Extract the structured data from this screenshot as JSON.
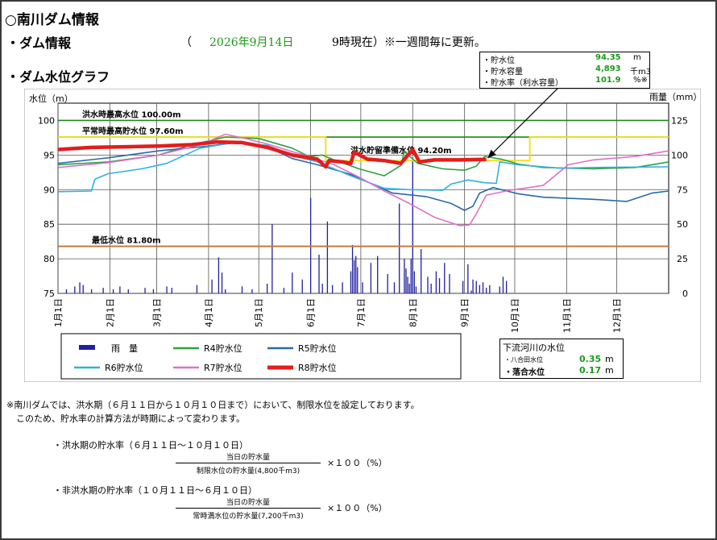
{
  "header": {
    "title": "○南川ダム情報",
    "dam_info_label": "・ダム情報",
    "date_open": "（",
    "date": "2026年9月14日",
    "time_note": "9時現在）※一週間毎に更新。",
    "graph_label": "・ダム水位グラフ"
  },
  "current_box": {
    "rows": [
      {
        "label": "・貯水位",
        "value": "94.35",
        "unit": "m"
      },
      {
        "label": "・貯水容量",
        "value": "4,893",
        "unit": "千m3"
      },
      {
        "label": "・貯水率（利水容量）",
        "value": "101.9",
        "unit": "%※"
      }
    ]
  },
  "downstream_box": {
    "title": "下流河川の水位",
    "rows": [
      {
        "label": "・八合田水位",
        "value": "0.35",
        "unit": "m"
      },
      {
        "label": "・落合水位",
        "value": "0.17",
        "unit": "m"
      }
    ]
  },
  "notes": {
    "line1": "※南川ダムでは、洪水期（６月１１日から１０月１０日まで）において、制限水位を設定しております。",
    "line2": "このため、貯水率の計算方法が時期によって変わります。",
    "flood_title": "・洪水期の貯水率（６月１１日～１０月１０日）",
    "flood_num": "当日の貯水量",
    "flood_den": "制限水位の貯水量(4,800千m3)",
    "flood_mult": "×１００（%）",
    "nonflood_title": "・非洪水期の貯水率（１０月１１日～６月１０日）",
    "nonflood_num": "当日の貯水量",
    "nonflood_den": "常時満水位の貯水量(7,200千m3)",
    "nonflood_mult": "×１００（%）"
  },
  "chart_data": {
    "type": "line",
    "ylabel": "水位（m）",
    "y2label": "雨量（mm）",
    "ylim": [
      75,
      102.5
    ],
    "yticks": [
      75,
      80,
      85,
      90,
      95,
      100
    ],
    "y2lim": [
      0,
      137.5
    ],
    "y2ticks": [
      0,
      25,
      50,
      75,
      100,
      125
    ],
    "xlim": [
      0,
      365
    ],
    "month_ticks": [
      {
        "label": "1月1日",
        "day": 0
      },
      {
        "label": "2月1日",
        "day": 31
      },
      {
        "label": "3月1日",
        "day": 59
      },
      {
        "label": "4月1日",
        "day": 90
      },
      {
        "label": "5月1日",
        "day": 120
      },
      {
        "label": "6月1日",
        "day": 151
      },
      {
        "label": "7月1日",
        "day": 181
      },
      {
        "label": "8月1日",
        "day": 212
      },
      {
        "label": "9月1日",
        "day": 243
      },
      {
        "label": "10月1日",
        "day": 273
      },
      {
        "label": "11月1日",
        "day": 304
      },
      {
        "label": "12月1日",
        "day": 334
      }
    ],
    "reference_lines": [
      {
        "label": "洪水時最高水位 100.00m",
        "value": 100.0,
        "color": "#1a8a1a"
      },
      {
        "label": "平常時最高貯水位 97.60m",
        "value": 97.6,
        "color": "#1a8a1a"
      },
      {
        "label": "洪水貯留準備水位 94.20m",
        "value": 94.2,
        "color": "#1a8a1a"
      },
      {
        "label": "最低水位 81.80m",
        "value": 81.8,
        "color": "#c8783c"
      }
    ],
    "limit_line": {
      "color": "#f0e020",
      "points": [
        [
          0,
          97.6
        ],
        [
          160,
          97.6
        ],
        [
          160,
          94.2
        ],
        [
          282,
          94.2
        ],
        [
          282,
          97.6
        ],
        [
          365,
          97.6
        ]
      ]
    },
    "series": [
      {
        "name": "R4貯水位",
        "color": "#30a040",
        "width": 1.6,
        "points": [
          [
            0,
            93.6
          ],
          [
            30,
            94.0
          ],
          [
            60,
            95.0
          ],
          [
            80,
            96.5
          ],
          [
            100,
            97.6
          ],
          [
            120,
            97.4
          ],
          [
            140,
            96.0
          ],
          [
            150,
            94.8
          ],
          [
            158,
            95.0
          ],
          [
            165,
            94.3
          ],
          [
            180,
            93.0
          ],
          [
            195,
            92.0
          ],
          [
            205,
            93.5
          ],
          [
            207,
            95.5
          ],
          [
            215,
            93.8
          ],
          [
            230,
            93.0
          ],
          [
            243,
            92.8
          ],
          [
            250,
            93.4
          ],
          [
            255,
            94.8
          ],
          [
            265,
            94.4
          ],
          [
            275,
            93.7
          ],
          [
            290,
            93.2
          ],
          [
            320,
            93.0
          ],
          [
            345,
            93.2
          ],
          [
            355,
            93.6
          ],
          [
            365,
            94.0
          ]
        ]
      },
      {
        "name": "R5貯水位",
        "color": "#2a6aa8",
        "width": 1.6,
        "points": [
          [
            0,
            93.8
          ],
          [
            30,
            94.6
          ],
          [
            60,
            95.6
          ],
          [
            90,
            96.3
          ],
          [
            110,
            96.9
          ],
          [
            125,
            96.2
          ],
          [
            140,
            94.5
          ],
          [
            155,
            93.6
          ],
          [
            175,
            92.2
          ],
          [
            200,
            89.5
          ],
          [
            220,
            89.0
          ],
          [
            235,
            88.0
          ],
          [
            243,
            87.0
          ],
          [
            248,
            87.6
          ],
          [
            252,
            89.5
          ],
          [
            260,
            90.3
          ],
          [
            275,
            89.4
          ],
          [
            290,
            88.9
          ],
          [
            320,
            88.6
          ],
          [
            340,
            88.3
          ],
          [
            355,
            89.5
          ],
          [
            365,
            89.8
          ]
        ]
      },
      {
        "name": "R6貯水位",
        "color": "#30b0e0",
        "width": 1.6,
        "points": [
          [
            0,
            89.7
          ],
          [
            20,
            89.8
          ],
          [
            22,
            91.5
          ],
          [
            30,
            92.3
          ],
          [
            50,
            93.0
          ],
          [
            65,
            93.8
          ],
          [
            85,
            96.0
          ],
          [
            105,
            96.8
          ],
          [
            125,
            96.4
          ],
          [
            140,
            95.0
          ],
          [
            155,
            94.0
          ],
          [
            175,
            92.0
          ],
          [
            195,
            90.2
          ],
          [
            210,
            90.0
          ],
          [
            230,
            89.9
          ],
          [
            235,
            90.8
          ],
          [
            245,
            91.4
          ],
          [
            255,
            91.0
          ],
          [
            262,
            90.9
          ],
          [
            264,
            94.0
          ],
          [
            275,
            93.6
          ],
          [
            300,
            93.1
          ],
          [
            320,
            93.2
          ],
          [
            365,
            93.3
          ]
        ]
      },
      {
        "name": "R7貯水位",
        "color": "#e070c8",
        "width": 1.6,
        "points": [
          [
            0,
            93.2
          ],
          [
            30,
            93.9
          ],
          [
            60,
            95.0
          ],
          [
            85,
            96.5
          ],
          [
            100,
            98.0
          ],
          [
            112,
            97.4
          ],
          [
            125,
            96.6
          ],
          [
            140,
            95.5
          ],
          [
            150,
            94.8
          ],
          [
            165,
            93.6
          ],
          [
            180,
            91.8
          ],
          [
            195,
            89.8
          ],
          [
            210,
            88.0
          ],
          [
            225,
            86.0
          ],
          [
            240,
            84.8
          ],
          [
            246,
            84.9
          ],
          [
            250,
            86.5
          ],
          [
            256,
            89.2
          ],
          [
            270,
            89.9
          ],
          [
            290,
            90.6
          ],
          [
            305,
            93.6
          ],
          [
            320,
            94.3
          ],
          [
            345,
            94.8
          ],
          [
            365,
            95.6
          ]
        ]
      },
      {
        "name": "R8貯水位",
        "color": "#e41c1c",
        "width": 4.5,
        "points": [
          [
            0,
            95.8
          ],
          [
            20,
            96.1
          ],
          [
            40,
            96.2
          ],
          [
            60,
            96.3
          ],
          [
            80,
            96.5
          ],
          [
            95,
            96.9
          ],
          [
            110,
            96.8
          ],
          [
            125,
            96.1
          ],
          [
            140,
            95.0
          ],
          [
            155,
            94.4
          ],
          [
            160,
            93.3
          ],
          [
            162,
            94.2
          ],
          [
            170,
            94.0
          ],
          [
            175,
            93.8
          ],
          [
            177,
            95.4
          ],
          [
            185,
            94.4
          ],
          [
            195,
            94.2
          ],
          [
            205,
            93.8
          ],
          [
            212,
            95.8
          ],
          [
            216,
            94.0
          ],
          [
            225,
            94.3
          ],
          [
            240,
            94.3
          ],
          [
            252,
            94.35
          ],
          [
            256,
            94.35
          ]
        ]
      }
    ],
    "rain": {
      "name": "雨　量",
      "color": "#2020a0",
      "bars": [
        [
          5,
          3
        ],
        [
          10,
          5
        ],
        [
          13,
          8
        ],
        [
          15,
          6
        ],
        [
          20,
          3
        ],
        [
          27,
          4
        ],
        [
          33,
          3
        ],
        [
          37,
          5
        ],
        [
          42,
          3
        ],
        [
          52,
          4
        ],
        [
          57,
          3
        ],
        [
          65,
          5
        ],
        [
          68,
          4
        ],
        [
          83,
          6
        ],
        [
          92,
          10
        ],
        [
          96,
          26
        ],
        [
          98,
          15
        ],
        [
          100,
          3
        ],
        [
          110,
          5
        ],
        [
          116,
          3
        ],
        [
          125,
          7
        ],
        [
          128,
          50
        ],
        [
          135,
          4
        ],
        [
          140,
          15
        ],
        [
          146,
          10
        ],
        [
          151,
          69
        ],
        [
          156,
          28
        ],
        [
          158,
          7
        ],
        [
          161,
          52
        ],
        [
          164,
          6
        ],
        [
          170,
          8
        ],
        [
          175,
          16
        ],
        [
          176,
          35
        ],
        [
          177,
          24
        ],
        [
          178,
          27
        ],
        [
          179,
          19
        ],
        [
          182,
          8
        ],
        [
          187,
          22
        ],
        [
          191,
          27
        ],
        [
          197,
          14
        ],
        [
          201,
          8
        ],
        [
          204,
          65
        ],
        [
          207,
          25
        ],
        [
          208,
          18
        ],
        [
          209,
          12
        ],
        [
          210,
          7
        ],
        [
          211,
          25
        ],
        [
          212,
          98
        ],
        [
          213,
          16
        ],
        [
          214,
          5
        ],
        [
          217,
          32
        ],
        [
          221,
          12
        ],
        [
          223,
          7
        ],
        [
          226,
          16
        ],
        [
          228,
          11
        ],
        [
          231,
          22
        ],
        [
          234,
          14
        ],
        [
          242,
          9
        ],
        [
          245,
          21
        ],
        [
          247,
          2
        ],
        [
          248,
          10
        ],
        [
          250,
          9
        ],
        [
          252,
          6
        ],
        [
          254,
          8
        ],
        [
          256,
          4
        ],
        [
          258,
          6
        ],
        [
          264,
          5
        ],
        [
          266,
          12
        ],
        [
          268,
          9
        ]
      ]
    },
    "legend": [
      {
        "name": "雨　量",
        "color": "#2020a0",
        "kind": "rain"
      },
      {
        "name": "R4貯水位",
        "color": "#30a040",
        "kind": "line"
      },
      {
        "name": "R5貯水位",
        "color": "#2a6aa8",
        "kind": "line"
      },
      {
        "name": "R6貯水位",
        "color": "#30b0e0",
        "kind": "line"
      },
      {
        "name": "R7貯水位",
        "color": "#e070c8",
        "kind": "line"
      },
      {
        "name": "R8貯水位",
        "color": "#e41c1c",
        "kind": "thick"
      }
    ]
  }
}
